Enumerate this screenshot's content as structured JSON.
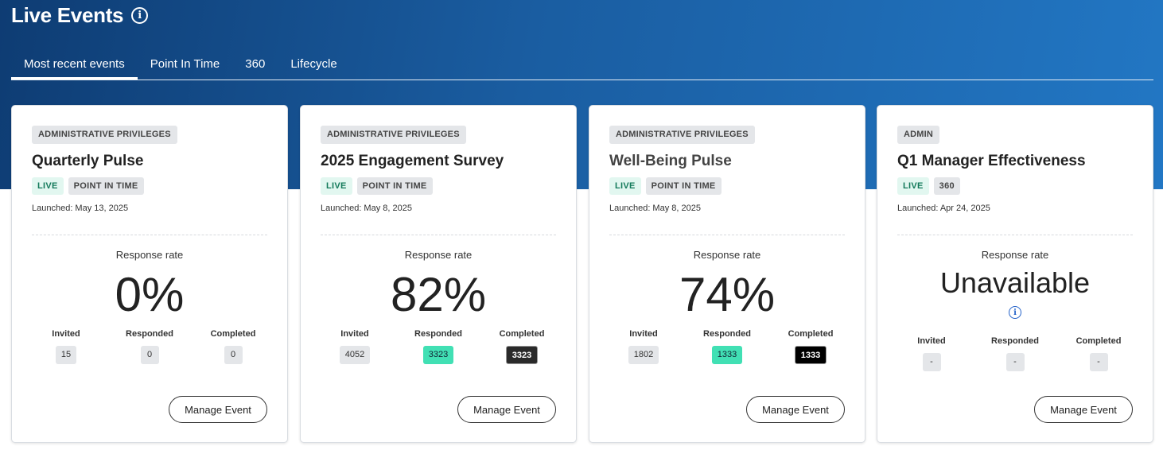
{
  "header": {
    "title": "Live Events"
  },
  "tabs": [
    {
      "label": "Most recent events"
    },
    {
      "label": "Point In Time"
    },
    {
      "label": "360"
    },
    {
      "label": "Lifecycle"
    }
  ],
  "cards": [
    {
      "privilege": "ADMINISTRATIVE PRIVILEGES",
      "title": "Quarterly Pulse",
      "status": "LIVE",
      "type": "POINT IN TIME",
      "launched": "Launched: May 13, 2025",
      "response_label": "Response rate",
      "response_rate": "0%",
      "invited_label": "Invited",
      "responded_label": "Responded",
      "completed_label": "Completed",
      "invited": "15",
      "responded": "0",
      "completed": "0",
      "manage_label": "Manage Event"
    },
    {
      "privilege": "ADMINISTRATIVE PRIVILEGES",
      "title": "2025 Engagement Survey",
      "status": "LIVE",
      "type": "POINT IN TIME",
      "launched": "Launched: May 8, 2025",
      "response_label": "Response rate",
      "response_rate": "82%",
      "invited_label": "Invited",
      "responded_label": "Responded",
      "completed_label": "Completed",
      "invited": "4052",
      "responded": "3323",
      "completed": "3323",
      "manage_label": "Manage Event"
    },
    {
      "privilege": "ADMINISTRATIVE PRIVILEGES",
      "title": "Well-Being Pulse",
      "status": "LIVE",
      "type": "POINT IN TIME",
      "launched": "Launched: May 8, 2025",
      "response_label": "Response rate",
      "response_rate": "74%",
      "invited_label": "Invited",
      "responded_label": "Responded",
      "completed_label": "Completed",
      "invited": "1802",
      "responded": "1333",
      "completed": "1333",
      "manage_label": "Manage Event"
    },
    {
      "privilege": "ADMIN",
      "title": "Q1 Manager Effectiveness",
      "status": "LIVE",
      "type": "360",
      "launched": "Launched: Apr 24, 2025",
      "response_label": "Response rate",
      "response_rate": "Unavailable",
      "invited_label": "Invited",
      "responded_label": "Responded",
      "completed_label": "Completed",
      "invited": "-",
      "responded": "-",
      "completed": "-",
      "manage_label": "Manage Event"
    }
  ],
  "icons": {
    "title_info": "info-icon",
    "unavailable_info": "info-icon"
  },
  "colors": {
    "hero_start": "#0e3c73",
    "hero_end": "#2277c4",
    "live_tag": "#e2f7f0",
    "responded_pill": "#41e0b4",
    "info_blue": "#2563c9"
  }
}
